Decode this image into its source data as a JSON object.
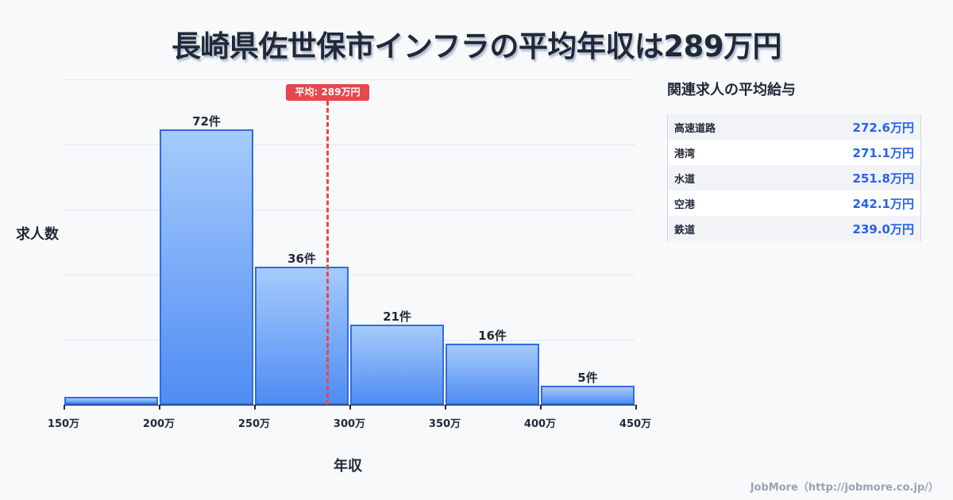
{
  "title": "長崎県佐世保市インフラの平均年収は289万円",
  "chart_data": {
    "type": "bar",
    "title": "長崎県佐世保市インフラの平均年収は289万円",
    "xlabel": "年収",
    "ylabel": "求人数",
    "categories": [
      "150-200万",
      "200-250万",
      "250-300万",
      "300-350万",
      "350-400万",
      "400-450万"
    ],
    "values": [
      2,
      72,
      36,
      21,
      16,
      5
    ],
    "bar_labels": [
      "",
      "72件",
      "36件",
      "21件",
      "16件",
      "5件"
    ],
    "x_ticks": [
      "150万",
      "200万",
      "250万",
      "300万",
      "350万",
      "400万",
      "450万"
    ],
    "ylim": [
      0,
      85
    ],
    "grid": true,
    "mean": {
      "value": 289,
      "label": "平均: 289万円",
      "color": "#e5484d"
    },
    "bar_color": "#4f8df3",
    "bar_border_color": "#2f6ce5"
  },
  "related": {
    "title": "関連求人の平均給与",
    "items": [
      {
        "name": "高速道路",
        "value": "272.6万円"
      },
      {
        "name": "港湾",
        "value": "271.1万円"
      },
      {
        "name": "水道",
        "value": "251.8万円"
      },
      {
        "name": "空港",
        "value": "242.1万円"
      },
      {
        "name": "鉄道",
        "value": "239.0万円"
      }
    ]
  },
  "footer": "JobMore（http://jobmore.co.jp/）"
}
